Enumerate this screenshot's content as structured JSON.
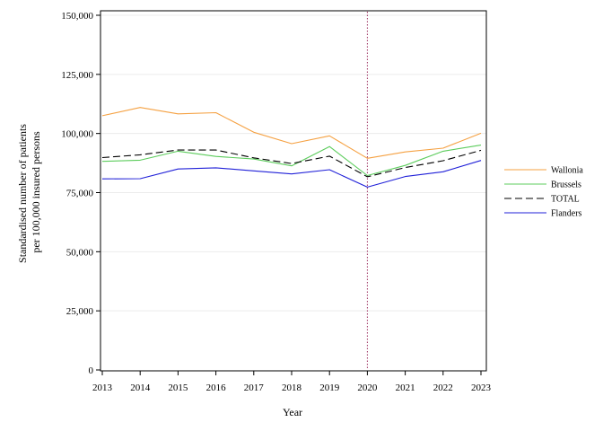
{
  "chart_data": {
    "type": "line",
    "title": "",
    "xlabel": "Year",
    "ylabel_lines": [
      "Standardised number of patients",
      "per 100,000 insured persons"
    ],
    "x": [
      2013,
      2014,
      2015,
      2016,
      2017,
      2018,
      2019,
      2020,
      2021,
      2022,
      2023
    ],
    "x_tick_labels": [
      "2013",
      "2014",
      "2015",
      "2016",
      "2017",
      "2018",
      "2019",
      "2020",
      "2021",
      "2022",
      "2023"
    ],
    "xlim": [
      2013,
      2023
    ],
    "ylim": [
      0,
      150000
    ],
    "y_ticks": [
      0,
      25000,
      50000,
      75000,
      100000,
      125000,
      150000
    ],
    "y_tick_labels": [
      "0",
      "25,000",
      "50,000",
      "75,000",
      "100,000",
      "125,000",
      "150,000"
    ],
    "grid": "horizontal",
    "legend_position": "right",
    "reference_line": {
      "x": 2020,
      "color": "#9b2d5e",
      "style": "dotted"
    },
    "series": [
      {
        "name": "Wallonia",
        "color": "#f5a142",
        "dash": "solid",
        "values": [
          107500,
          111000,
          108300,
          108800,
          100500,
          95700,
          99000,
          89500,
          92200,
          93800,
          100100
        ]
      },
      {
        "name": "Brussels",
        "color": "#5ccc5c",
        "dash": "solid",
        "values": [
          88200,
          88700,
          92500,
          90300,
          89200,
          86300,
          94500,
          82200,
          86500,
          92500,
          95100
        ]
      },
      {
        "name": "TOTAL",
        "color": "#000000",
        "dash": "dashed",
        "values": [
          89800,
          91000,
          93000,
          93000,
          89700,
          87300,
          90400,
          81700,
          85600,
          88500,
          92900
        ]
      },
      {
        "name": "Flanders",
        "color": "#2020d8",
        "dash": "solid",
        "values": [
          80800,
          80900,
          85000,
          85500,
          84200,
          82900,
          84700,
          77300,
          81800,
          83800,
          88600
        ]
      }
    ]
  }
}
